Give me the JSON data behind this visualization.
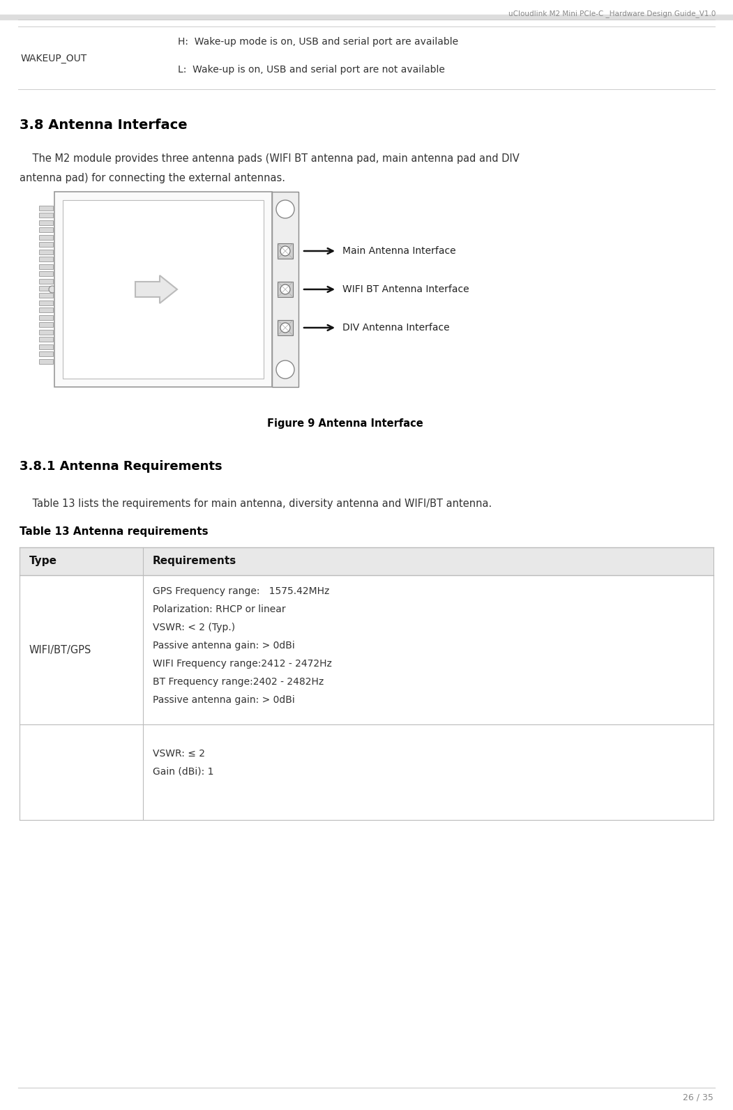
{
  "header_text": "uCloudlink M2 Mini PCIe-C _Hardware Design Guide_V1.0",
  "footer_text": "26 / 35",
  "bg_color": "#ffffff",
  "wakeup_label": "WAKEUP_OUT",
  "wakeup_h": "H:  Wake-up mode is on, USB and serial port are available",
  "wakeup_l": "L:  Wake-up is on, USB and serial port are not available",
  "section_38_title": "3.8 Antenna Interface",
  "section_38_body1": "    The M2 module provides three antenna pads (WIFI BT antenna pad, main antenna pad and DIV",
  "section_38_body2": "antenna pad) for connecting the external antennas.",
  "figure_caption": "Figure 9 Antenna Interface",
  "antenna_labels": [
    "Main Antenna Interface",
    "WIFI BT Antenna Interface",
    "DIV Antenna Interface"
  ],
  "section_381_title": "3.8.1 Antenna Requirements",
  "section_381_body": "    Table 13 lists the requirements for main antenna, diversity antenna and WIFI/BT antenna.",
  "table_title": "Table 13 Antenna requirements",
  "table_header": [
    "Type",
    "Requirements"
  ],
  "table_row1_type": "WIFI/BT/GPS",
  "table_row1_reqs": [
    "GPS Frequency range:   1575.42MHz",
    "Polarization: RHCP or linear",
    "VSWR: < 2 (Typ.)",
    "Passive antenna gain: > 0dBi",
    "WIFI Frequency range:2412 - 2472Hz",
    "BT Frequency range:2402 - 2482Hz",
    "Passive antenna gain: > 0dBi"
  ],
  "table_row2_reqs": [
    "VSWR: ≤ 2",
    "Gain (dBi): 1"
  ],
  "table_header_bg": "#e8e8e8",
  "table_border_color": "#bbbbbb",
  "line_color": "#cccccc",
  "text_color": "#333333",
  "label_color": "#222222"
}
